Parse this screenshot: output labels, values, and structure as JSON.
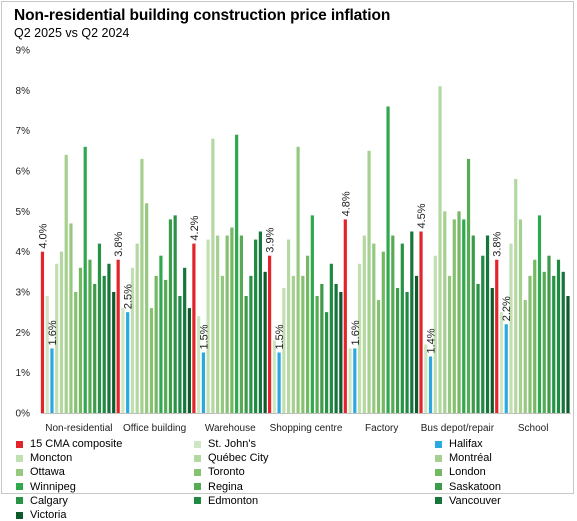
{
  "title": "Non-residential building construction price inflation",
  "subtitle": "Q2 2025 vs Q2 2024",
  "chart_data": {
    "type": "bar",
    "ylim": [
      0,
      9
    ],
    "yticks": [
      "0%",
      "1%",
      "2%",
      "3%",
      "4%",
      "5%",
      "6%",
      "7%",
      "8%",
      "9%"
    ],
    "categories": [
      "Non-residential",
      "Office building",
      "Warehouse",
      "Shopping centre",
      "Factory",
      "Bus depot/repair",
      "School"
    ],
    "labels": [
      {
        "series": 0,
        "text": [
          "4.0%",
          "3.8%",
          "4.2%",
          "3.9%",
          "4.8%",
          "4.5%",
          "3.8%"
        ]
      },
      {
        "series": 2,
        "text": [
          "1.6%",
          "2.5%",
          "1.5%",
          "1.5%",
          "1.6%",
          "1.4%",
          "2.2%"
        ]
      }
    ],
    "series": [
      {
        "name": "15 CMA composite",
        "color": "#e3242b",
        "values": [
          4.0,
          3.8,
          4.2,
          3.9,
          4.8,
          4.5,
          3.8
        ]
      },
      {
        "name": "St. John's",
        "color": "#cfe6c3",
        "values": [
          2.9,
          2.6,
          2.4,
          1.8,
          1.6,
          1.7,
          2.5
        ]
      },
      {
        "name": "Halifax",
        "color": "#2aa8e0",
        "values": [
          1.6,
          2.5,
          1.5,
          1.5,
          1.6,
          1.4,
          2.2
        ]
      },
      {
        "name": "Moncton",
        "color": "#c2dfb2",
        "values": [
          3.7,
          3.6,
          4.3,
          3.1,
          3.7,
          3.9,
          4.2
        ]
      },
      {
        "name": "Québec City",
        "color": "#b3d8a0",
        "values": [
          4.0,
          4.2,
          6.8,
          4.3,
          4.4,
          8.1,
          5.8
        ]
      },
      {
        "name": "Montréal",
        "color": "#a5d08f",
        "values": [
          6.4,
          6.3,
          4.4,
          3.4,
          6.5,
          5.0,
          4.8
        ]
      },
      {
        "name": "Ottawa",
        "color": "#96c980",
        "values": [
          4.7,
          5.2,
          3.4,
          6.6,
          4.2,
          3.4,
          2.8
        ]
      },
      {
        "name": "Toronto",
        "color": "#86c171",
        "values": [
          3.0,
          2.6,
          4.4,
          3.4,
          2.8,
          4.8,
          3.4
        ]
      },
      {
        "name": "London",
        "color": "#74b862",
        "values": [
          3.6,
          3.4,
          4.6,
          3.9,
          4.0,
          5.0,
          3.8
        ]
      },
      {
        "name": "Winnipeg",
        "color": "#2fa84f",
        "values": [
          6.6,
          3.9,
          6.9,
          4.9,
          7.6,
          4.8,
          4.9
        ]
      },
      {
        "name": "Regina",
        "color": "#58ab55",
        "values": [
          3.8,
          3.3,
          4.4,
          2.9,
          4.4,
          6.3,
          3.5
        ]
      },
      {
        "name": "Saskatoon",
        "color": "#3e9b4c",
        "values": [
          3.2,
          4.8,
          2.9,
          3.2,
          3.1,
          4.4,
          3.9
        ]
      },
      {
        "name": "Calgary",
        "color": "#289245",
        "values": [
          4.2,
          4.9,
          3.4,
          2.5,
          4.2,
          3.2,
          3.4
        ]
      },
      {
        "name": "Edmonton",
        "color": "#1f8a42",
        "values": [
          3.4,
          2.9,
          4.3,
          3.7,
          3.0,
          3.9,
          3.8
        ]
      },
      {
        "name": "Vancouver",
        "color": "#16753a",
        "values": [
          3.7,
          3.6,
          4.5,
          3.2,
          4.5,
          4.4,
          3.5
        ]
      },
      {
        "name": "Victoria",
        "color": "#0d5a2c",
        "values": [
          3.0,
          2.6,
          3.5,
          3.0,
          3.4,
          3.1,
          2.9
        ]
      }
    ],
    "legend_placement": "bottom",
    "grid": false
  }
}
